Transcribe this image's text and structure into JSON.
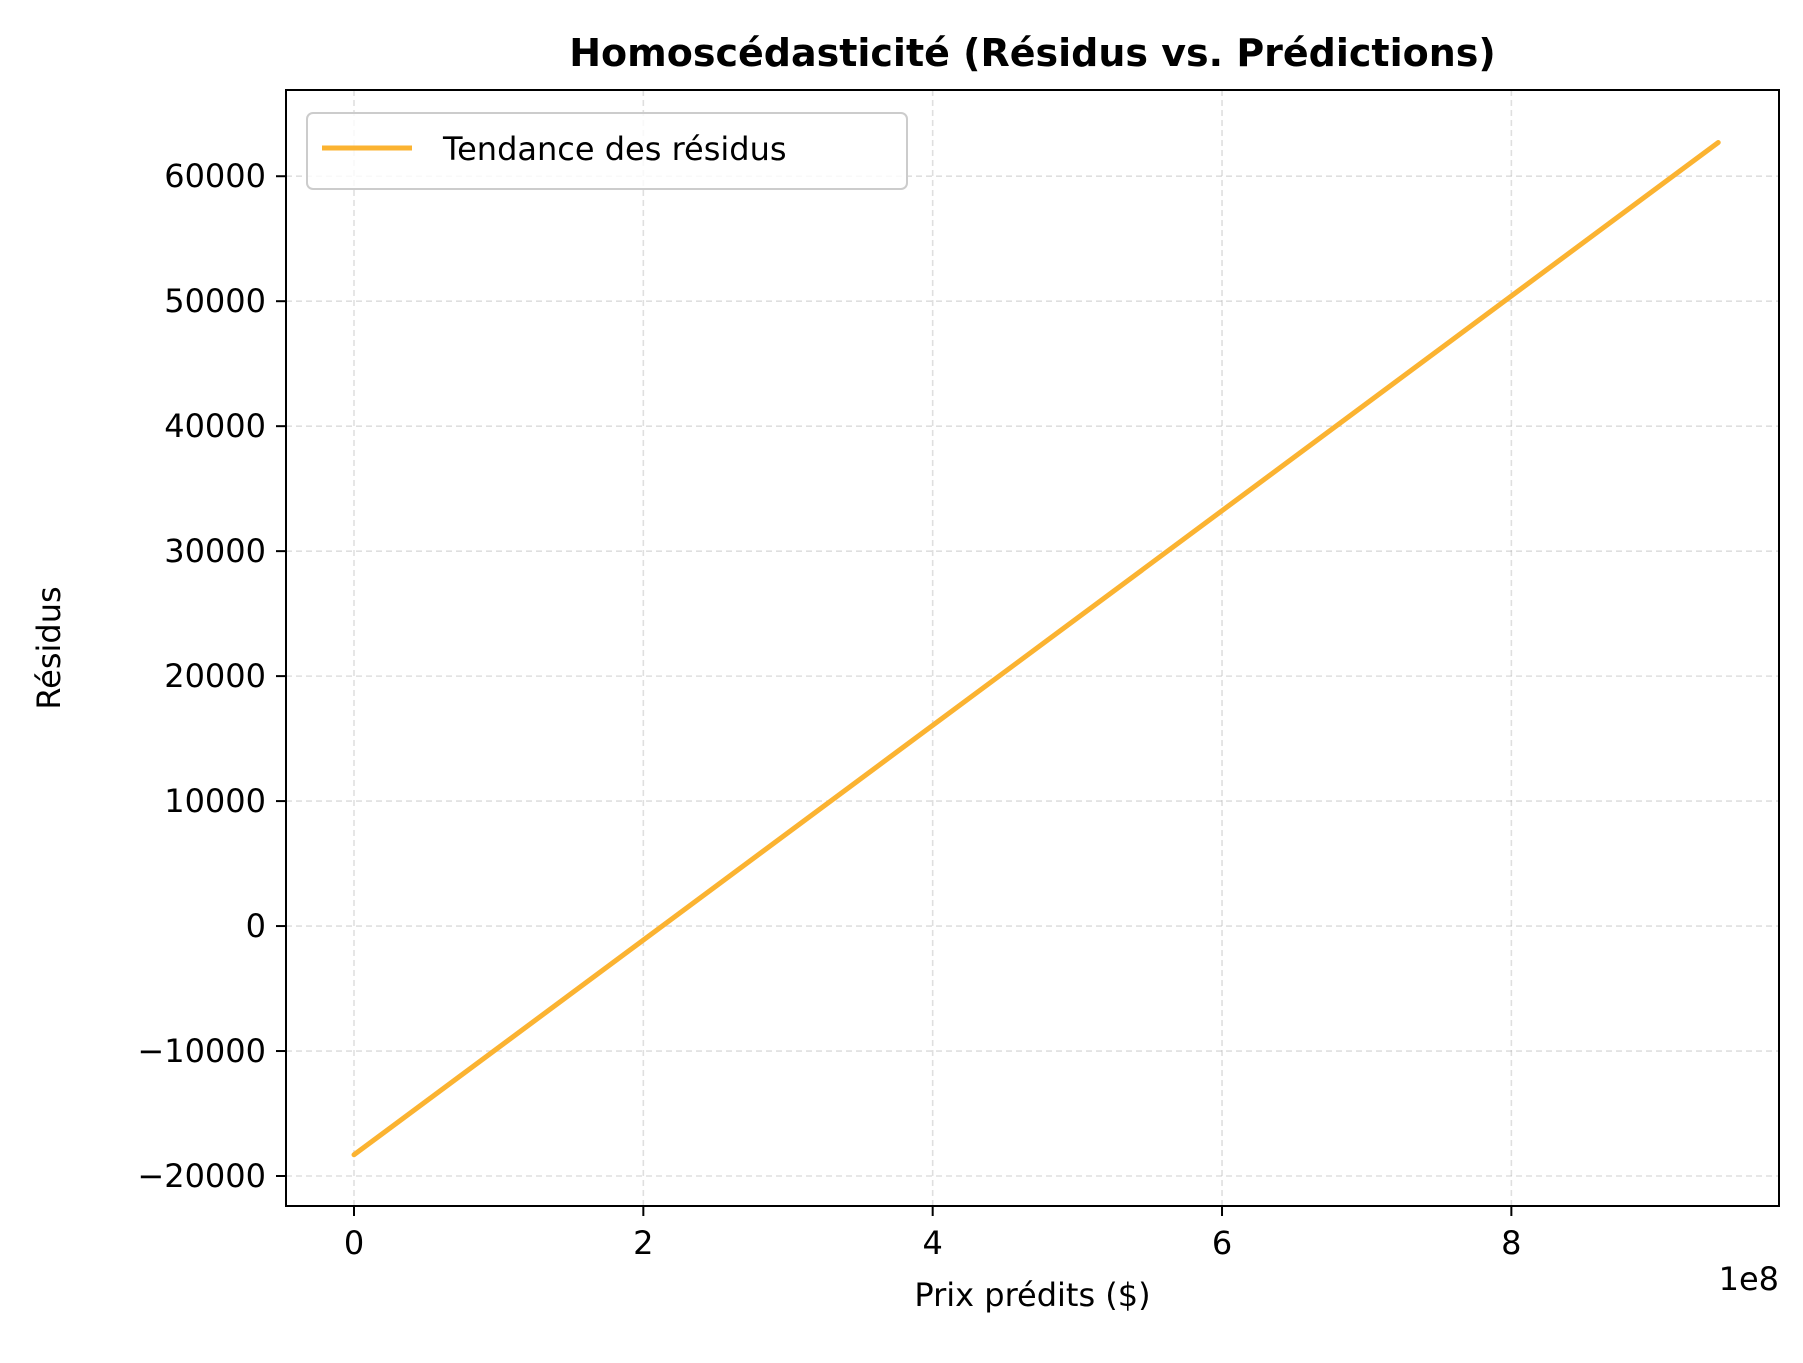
{
  "chart_data": {
    "type": "line",
    "title": "Homoscédasticité (Résidus vs. Prédictions)",
    "xlabel": "Prix prédits ($)",
    "ylabel": "Résidus",
    "x_offset_label": "1e8",
    "xlim": [
      -0.47,
      9.85
    ],
    "ylim": [
      -22400,
      66900
    ],
    "x_ticks": [
      0,
      2,
      4,
      6,
      8
    ],
    "x_tick_labels": [
      "0",
      "2",
      "4",
      "6",
      "8"
    ],
    "y_ticks": [
      -20000,
      -10000,
      0,
      10000,
      20000,
      30000,
      40000,
      50000,
      60000
    ],
    "y_tick_labels": [
      "−20000",
      "−10000",
      "0",
      "10000",
      "20000",
      "30000",
      "40000",
      "50000",
      "60000"
    ],
    "grid": true,
    "legend_position": "top-left",
    "series": [
      {
        "name": "Tendance des résidus",
        "color": "#fbb331",
        "x": [
          0,
          9.43
        ],
        "y": [
          -18300,
          62700
        ]
      }
    ]
  }
}
